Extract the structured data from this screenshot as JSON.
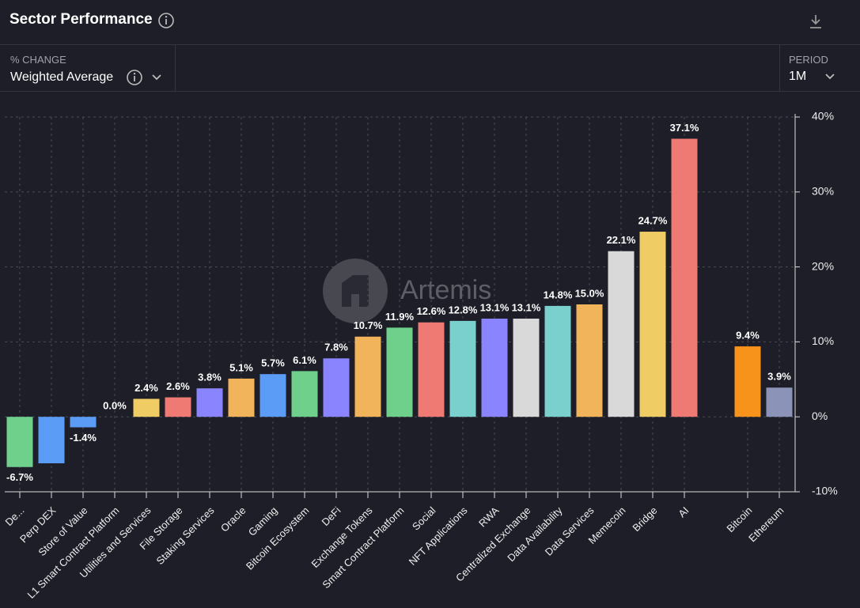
{
  "header": {
    "title": "Sector Performance"
  },
  "controls": {
    "metric_label": "% CHANGE",
    "metric_value": "Weighted Average",
    "period_label": "PERIOD",
    "period_value": "1M"
  },
  "chart_data": {
    "type": "bar",
    "watermark": "Artemis",
    "categories": [
      "De...",
      "Perp DEX",
      "Store of Value",
      "L1 Smart Contract Platform",
      "Utilities and Services",
      "File Storage",
      "Staking Services",
      "Oracle",
      "Gaming",
      "Bitcoin Ecosystem",
      "DeFi",
      "Exchange Tokens",
      "Smart Contract Platform",
      "Social",
      "NFT Applications",
      "RWA",
      "Centralized Exchange",
      "Data Availability",
      "Data Services",
      "Memecoin",
      "Bridge",
      "AI",
      "Bitcoin",
      "Ethereum"
    ],
    "values": [
      -6.7,
      -6.2,
      -1.4,
      0.0,
      2.4,
      2.6,
      3.8,
      5.1,
      5.7,
      6.1,
      7.8,
      10.7,
      11.9,
      12.6,
      12.8,
      13.1,
      13.1,
      14.8,
      15.0,
      22.1,
      24.7,
      37.1,
      9.4,
      3.9
    ],
    "value_labels": [
      "-6.7%",
      null,
      "-1.4%",
      "0.0%",
      "2.4%",
      "2.6%",
      "3.8%",
      "5.1%",
      "5.7%",
      "6.1%",
      "7.8%",
      "10.7%",
      "11.9%",
      "12.6%",
      "12.8%",
      "13.1%",
      "13.1%",
      "14.8%",
      "15.0%",
      "22.1%",
      "24.7%",
      "37.1%",
      "9.4%",
      "3.9%"
    ],
    "colors": [
      "#6fd08c",
      "#5b9cf6",
      "#5b9cf6",
      "#6fd08c",
      "#f0cc64",
      "#ef7a73",
      "#8b84ff",
      "#f2b45a",
      "#5b9cf6",
      "#6fd08c",
      "#8b84ff",
      "#f2b45a",
      "#6fd08c",
      "#ef7a73",
      "#7ad0cc",
      "#8b84ff",
      "#d9d9d9",
      "#7ad0cc",
      "#f2b45a",
      "#d9d9d9",
      "#f0cc64",
      "#ef7a73",
      "#f7931a",
      "#8c93b8"
    ],
    "ylim": [
      -10,
      40
    ],
    "yticks": [
      {
        "value": -10,
        "label": "-10%"
      },
      {
        "value": 0,
        "label": "0%"
      },
      {
        "value": 10,
        "label": "10%"
      },
      {
        "value": 20,
        "label": "20%"
      },
      {
        "value": 30,
        "label": "30%"
      },
      {
        "value": 40,
        "label": "40%"
      }
    ],
    "grid": true
  }
}
